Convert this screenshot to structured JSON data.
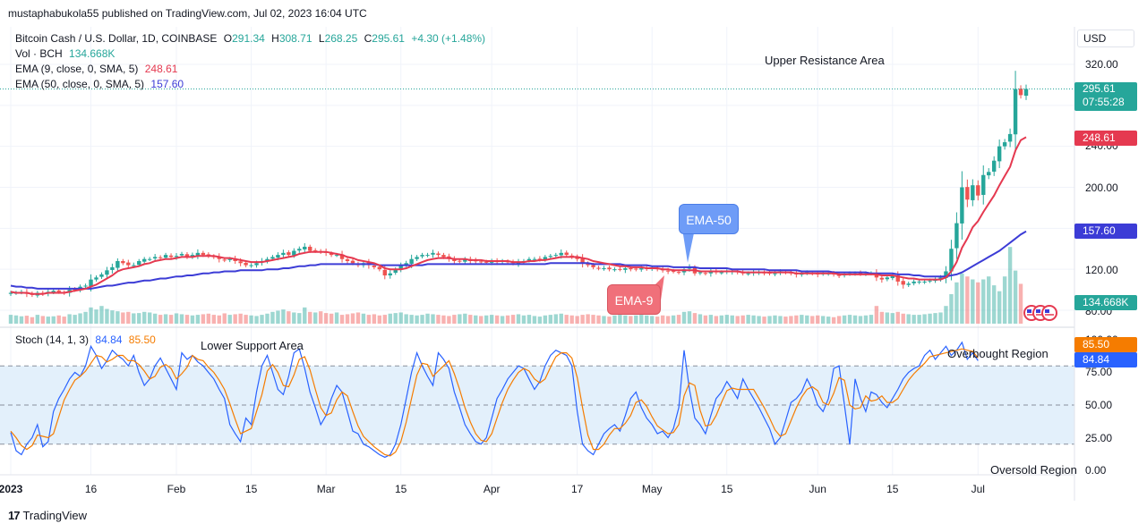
{
  "published_by": "mustaphabukola55 published on TradingView.com, Jul 02, 2023 16:04 UTC",
  "footer_brand": "TradingView",
  "currency_button": "USD",
  "legend": {
    "symbol": "Bitcoin Cash / U.S. Dollar, 1D, COINBASE",
    "open_label": "O",
    "open": "291.34",
    "high_label": "H",
    "high": "308.71",
    "low_label": "L",
    "low": "268.25",
    "close_label": "C",
    "close": "295.61",
    "change": "+4.30 (+1.48%)",
    "volume_label": "Vol · BCH",
    "volume": "134.668K",
    "ema9_label": "EMA (9, close, 0, SMA, 5)",
    "ema9": "248.61",
    "ema50_label": "EMA (50, close, 0, SMA, 5)",
    "ema50": "157.60",
    "stoch_label": "Stoch (14, 1, 3)",
    "stoch_k": "84.84",
    "stoch_d": "85.50"
  },
  "annotations": {
    "upper_resistance": "Upper Resistance Area",
    "lower_support": "Lower Support Area",
    "overbought": "Overbought Region",
    "oversold": "Oversold Region",
    "ema50_callout": "EMA-50",
    "ema9_callout": "EMA-9"
  },
  "price_badges": {
    "last_price": "295.61",
    "countdown": "07:55:28",
    "ema9": "248.61",
    "ema50": "157.60",
    "volume": "134.668K",
    "stoch_d": "85.50",
    "stoch_k": "84.84"
  },
  "colors": {
    "up": "#26a69a",
    "down": "#ef5350",
    "ema9": "#e53950",
    "ema50": "#3c3cd6",
    "stoch_k": "#2962ff",
    "stoch_d": "#f57c00",
    "stoch_band": "#e3f0fb",
    "callout_blue": "#6e9cf7",
    "callout_red": "#f0707a",
    "ema9_badge": "#e53950",
    "ema50_badge": "#3c3cd6",
    "volume_badge": "#26a69a",
    "last_badge": "#26a69a"
  },
  "chart_data": {
    "type": "candlestick",
    "symbol": "BCHUSD",
    "timeframe": "1D",
    "price_axis": {
      "ticks": [
        "320.00",
        "240.00",
        "200.00",
        "120.00",
        "80.00"
      ],
      "range": [
        78,
        345
      ]
    },
    "stoch_axis": {
      "ticks": [
        "100.00",
        "75.00",
        "50.00",
        "25.00",
        "0.00"
      ],
      "range": [
        0,
        100
      ],
      "bands": [
        20,
        80
      ]
    },
    "x_labels": [
      "2023",
      "16",
      "Feb",
      "15",
      "Mar",
      "15",
      "Apr",
      "17",
      "May",
      "15",
      "Jun",
      "15",
      "Jul"
    ],
    "x_label_days": [
      0,
      15,
      31,
      45,
      59,
      73,
      90,
      106,
      120,
      134,
      151,
      165,
      181
    ],
    "close": [
      97,
      97,
      98,
      96,
      95,
      97,
      96,
      98,
      99,
      98,
      97,
      100,
      100,
      103,
      104,
      110,
      112,
      115,
      119,
      122,
      128,
      126,
      124,
      124,
      128,
      130,
      130,
      132,
      131,
      134,
      132,
      133,
      135,
      132,
      134,
      136,
      134,
      133,
      132,
      130,
      129,
      130,
      128,
      126,
      124,
      124,
      126,
      128,
      130,
      132,
      134,
      136,
      134,
      138,
      140,
      142,
      138,
      138,
      137,
      136,
      134,
      134,
      130,
      128,
      126,
      124,
      126,
      124,
      122,
      120,
      114,
      116,
      120,
      124,
      126,
      130,
      132,
      134,
      134,
      136,
      134,
      132,
      130,
      128,
      128,
      130,
      128,
      128,
      127,
      127,
      128,
      127,
      128,
      127,
      126,
      127,
      128,
      130,
      130,
      130,
      132,
      133,
      134,
      136,
      134,
      132,
      130,
      126,
      124,
      122,
      121,
      121,
      120,
      120,
      120,
      121,
      120,
      120,
      121,
      121,
      121,
      120,
      119,
      118,
      118,
      117,
      120,
      122,
      116,
      117,
      116,
      118,
      117,
      117,
      118,
      118,
      117,
      116,
      116,
      117,
      117,
      116,
      116,
      116,
      118,
      117,
      116,
      115,
      116,
      117,
      116,
      115,
      116,
      116,
      115,
      114,
      115,
      116,
      116,
      116,
      116,
      116,
      112,
      110,
      112,
      114,
      108,
      105,
      106,
      108,
      108,
      108,
      109,
      110,
      112,
      118,
      140,
      165,
      200,
      188,
      202,
      192,
      212,
      215,
      226,
      240,
      244,
      252,
      296,
      290,
      296
    ],
    "ema9": [
      98,
      97,
      97,
      97,
      96,
      96,
      96,
      97,
      97,
      97,
      97,
      98,
      99,
      100,
      101,
      103,
      105,
      108,
      111,
      114,
      118,
      120,
      121,
      122,
      123,
      125,
      126,
      128,
      129,
      130,
      130,
      131,
      132,
      132,
      132,
      133,
      133,
      133,
      133,
      132,
      131,
      131,
      130,
      129,
      128,
      127,
      127,
      127,
      128,
      129,
      130,
      131,
      132,
      133,
      135,
      136,
      137,
      137,
      137,
      137,
      136,
      135,
      134,
      132,
      131,
      129,
      128,
      127,
      126,
      124,
      121,
      120,
      120,
      120,
      121,
      123,
      125,
      127,
      129,
      130,
      131,
      131,
      131,
      130,
      130,
      130,
      129,
      129,
      129,
      128,
      128,
      128,
      128,
      128,
      127,
      127,
      127,
      128,
      128,
      129,
      129,
      130,
      131,
      132,
      132,
      132,
      132,
      131,
      130,
      128,
      127,
      126,
      125,
      124,
      123,
      123,
      122,
      122,
      122,
      121,
      121,
      121,
      120,
      120,
      119,
      119,
      119,
      119,
      119,
      118,
      118,
      118,
      118,
      118,
      118,
      118,
      118,
      117,
      117,
      117,
      117,
      117,
      117,
      117,
      117,
      117,
      117,
      116,
      116,
      116,
      116,
      116,
      116,
      116,
      116,
      115,
      115,
      115,
      115,
      115,
      115,
      115,
      115,
      114,
      114,
      114,
      113,
      112,
      111,
      111,
      110,
      110,
      110,
      110,
      110,
      112,
      118,
      127,
      141,
      150,
      161,
      167,
      176,
      184,
      192,
      202,
      211,
      220,
      236,
      246,
      249
    ],
    "ema50": [
      104,
      103,
      103,
      102,
      102,
      101,
      101,
      101,
      101,
      101,
      101,
      101,
      101,
      101,
      101,
      101,
      102,
      103,
      104,
      104,
      105,
      106,
      107,
      107,
      108,
      109,
      109,
      110,
      111,
      111,
      112,
      113,
      113,
      114,
      114,
      115,
      116,
      116,
      117,
      117,
      118,
      118,
      118,
      119,
      119,
      119,
      119,
      119,
      120,
      120,
      120,
      121,
      121,
      122,
      123,
      123,
      124,
      124,
      125,
      125,
      125,
      125,
      125,
      125,
      125,
      125,
      125,
      125,
      125,
      124,
      124,
      124,
      124,
      124,
      124,
      124,
      124,
      124,
      125,
      125,
      125,
      125,
      125,
      125,
      125,
      125,
      125,
      125,
      125,
      125,
      125,
      125,
      125,
      125,
      125,
      125,
      125,
      125,
      125,
      125,
      125,
      126,
      126,
      126,
      126,
      126,
      126,
      126,
      126,
      125,
      125,
      125,
      125,
      125,
      125,
      124,
      124,
      124,
      124,
      124,
      123,
      123,
      123,
      123,
      122,
      122,
      122,
      122,
      122,
      121,
      121,
      121,
      121,
      121,
      121,
      120,
      120,
      120,
      120,
      120,
      120,
      120,
      119,
      119,
      119,
      119,
      119,
      119,
      118,
      118,
      118,
      118,
      118,
      118,
      117,
      117,
      117,
      117,
      117,
      117,
      117,
      116,
      116,
      116,
      116,
      116,
      115,
      115,
      115,
      114,
      114,
      113,
      113,
      113,
      113,
      113,
      114,
      115,
      117,
      120,
      123,
      126,
      129,
      132,
      135,
      138,
      142,
      146,
      150,
      154,
      157
    ],
    "volume_k": [
      30,
      28,
      25,
      27,
      22,
      30,
      26,
      24,
      25,
      28,
      24,
      32,
      30,
      35,
      40,
      55,
      48,
      60,
      50,
      45,
      42,
      38,
      40,
      35,
      36,
      40,
      38,
      34,
      30,
      32,
      30,
      35,
      32,
      30,
      28,
      30,
      32,
      34,
      30,
      28,
      35,
      30,
      32,
      34,
      30,
      28,
      26,
      30,
      34,
      40,
      44,
      48,
      42,
      38,
      36,
      55,
      40,
      38,
      42,
      36,
      34,
      38,
      30,
      32,
      35,
      38,
      34,
      30,
      32,
      28,
      30,
      34,
      36,
      38,
      32,
      30,
      28,
      30,
      34,
      32,
      30,
      28,
      26,
      30,
      32,
      34,
      30,
      28,
      26,
      28,
      30,
      28,
      26,
      28,
      30,
      32,
      28,
      30,
      26,
      24,
      28,
      30,
      32,
      34,
      30,
      28,
      26,
      30,
      32,
      30,
      28,
      26,
      24,
      28,
      30,
      28,
      26,
      28,
      30,
      28,
      26,
      24,
      28,
      26,
      28,
      30,
      40,
      42,
      36,
      32,
      28,
      30,
      26,
      28,
      30,
      28,
      26,
      28,
      30,
      28,
      26,
      24,
      26,
      28,
      26,
      24,
      26,
      28,
      30,
      28,
      26,
      28,
      26,
      24,
      22,
      26,
      28,
      30,
      28,
      26,
      28,
      30,
      60,
      40,
      38,
      36,
      40,
      34,
      32,
      30,
      30,
      32,
      34,
      36,
      38,
      60,
      100,
      140,
      170,
      160,
      150,
      140,
      150,
      160,
      130,
      110,
      160,
      260,
      180,
      135
    ],
    "stoch_k": [
      29,
      15,
      12,
      20,
      25,
      35,
      18,
      22,
      45,
      55,
      62,
      70,
      75,
      72,
      80,
      95,
      88,
      78,
      84,
      92,
      88,
      85,
      80,
      88,
      75,
      65,
      70,
      80,
      86,
      78,
      70,
      62,
      90,
      85,
      88,
      83,
      80,
      75,
      70,
      62,
      55,
      35,
      28,
      22,
      40,
      35,
      60,
      80,
      88,
      75,
      62,
      58,
      72,
      90,
      93,
      78,
      60,
      48,
      35,
      42,
      55,
      65,
      60,
      45,
      30,
      28,
      20,
      18,
      15,
      12,
      10,
      12,
      20,
      35,
      55,
      75,
      90,
      80,
      72,
      65,
      90,
      85,
      78,
      60,
      48,
      35,
      28,
      22,
      20,
      25,
      40,
      55,
      62,
      70,
      75,
      80,
      78,
      70,
      62,
      68,
      80,
      88,
      92,
      90,
      88,
      80,
      45,
      20,
      15,
      12,
      20,
      28,
      32,
      35,
      30,
      42,
      55,
      60,
      48,
      40,
      35,
      28,
      30,
      25,
      32,
      48,
      92,
      62,
      40,
      35,
      28,
      42,
      55,
      60,
      68,
      62,
      55,
      70,
      62,
      55,
      48,
      40,
      32,
      20,
      25,
      38,
      52,
      55,
      60,
      70,
      62,
      50,
      45,
      55,
      78,
      80,
      50,
      20,
      70,
      55,
      45,
      60,
      58,
      52,
      48,
      55,
      62,
      70,
      75,
      78,
      80,
      88,
      92,
      85,
      90,
      95,
      88,
      92,
      98,
      85,
      90,
      84
    ],
    "stoch_d": [
      30,
      25,
      19,
      16,
      19,
      27,
      26,
      25,
      28,
      41,
      54,
      62,
      69,
      72,
      76,
      82,
      88,
      87,
      83,
      85,
      88,
      88,
      84,
      84,
      81,
      76,
      70,
      72,
      79,
      81,
      78,
      70,
      74,
      79,
      88,
      85,
      84,
      79,
      75,
      69,
      62,
      51,
      39,
      28,
      30,
      32,
      45,
      58,
      76,
      81,
      75,
      65,
      64,
      73,
      85,
      87,
      77,
      62,
      48,
      42,
      44,
      54,
      60,
      57,
      45,
      34,
      26,
      22,
      18,
      15,
      12,
      11,
      14,
      22,
      37,
      55,
      73,
      82,
      81,
      72,
      76,
      80,
      84,
      74,
      62,
      48,
      37,
      28,
      23,
      22,
      28,
      40,
      52,
      62,
      69,
      75,
      78,
      76,
      70,
      67,
      70,
      79,
      87,
      90,
      90,
      86,
      71,
      48,
      27,
      16,
      16,
      20,
      27,
      32,
      32,
      36,
      42,
      52,
      54,
      49,
      41,
      34,
      31,
      28,
      29,
      35,
      57,
      67,
      65,
      46,
      34,
      35,
      42,
      52,
      61,
      63,
      62,
      62,
      62,
      62,
      55,
      48,
      40,
      31,
      26,
      28,
      38,
      48,
      56,
      62,
      64,
      61,
      52,
      50,
      59,
      71,
      69,
      50,
      47,
      48,
      57,
      53,
      54,
      57,
      52,
      52,
      55,
      62,
      69,
      74,
      78,
      82,
      87,
      88,
      89,
      90,
      91,
      92,
      93,
      92,
      91,
      86
    ]
  }
}
